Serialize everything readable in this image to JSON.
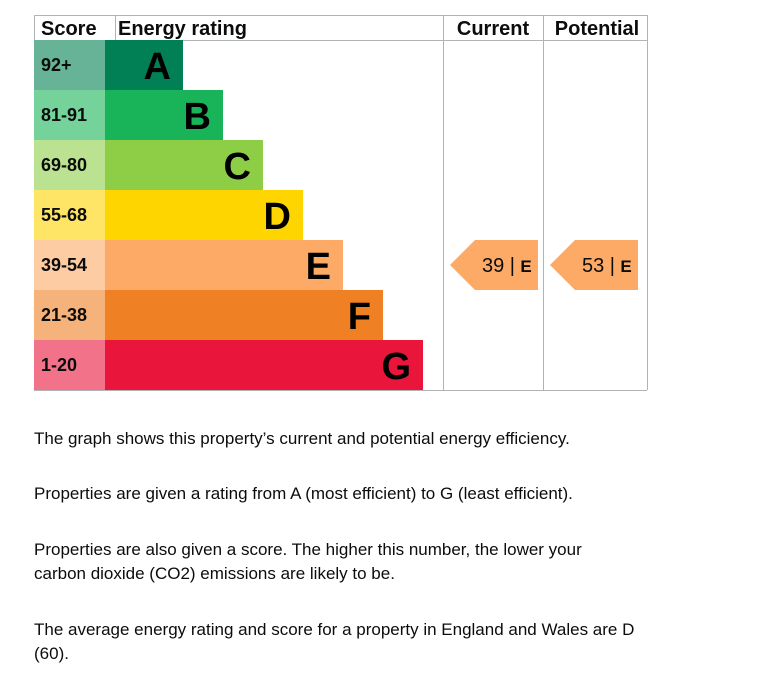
{
  "chart_data": {
    "type": "bar",
    "headers": {
      "score": "Score",
      "rating": "Energy rating",
      "current": "Current",
      "potential": "Potential"
    },
    "bands": [
      {
        "letter": "A",
        "range": "92+",
        "color": "#008054",
        "score_color": "#66b398"
      },
      {
        "letter": "B",
        "range": "81-91",
        "color": "#19b459",
        "score_color": "#75d29b"
      },
      {
        "letter": "C",
        "range": "69-80",
        "color": "#8dce46",
        "score_color": "#bbe290"
      },
      {
        "letter": "D",
        "range": "55-68",
        "color": "#ffd500",
        "score_color": "#ffe566"
      },
      {
        "letter": "E",
        "range": "39-54",
        "color": "#fcaa65",
        "score_color": "#fdcca3"
      },
      {
        "letter": "F",
        "range": "21-38",
        "color": "#ef8023",
        "score_color": "#f5b37b"
      },
      {
        "letter": "G",
        "range": "1-20",
        "color": "#e9153b",
        "score_color": "#f27389"
      }
    ],
    "current": {
      "score": "39",
      "band": "E",
      "label": "39 |",
      "letter": "E"
    },
    "potential": {
      "score": "53",
      "band": "E",
      "label": "53 |",
      "letter": "E"
    }
  },
  "text": {
    "p1": "The graph shows this property’s current and potential energy efficiency.",
    "p2": "Properties are given a rating from A (most efficient) to G (least efficient).",
    "p3": "Properties are also given a score. The higher this number, the lower your carbon dioxide (CO2) emissions are likely to be.",
    "p4": "The average energy rating and score for a property in England and Wales are D (60)."
  }
}
